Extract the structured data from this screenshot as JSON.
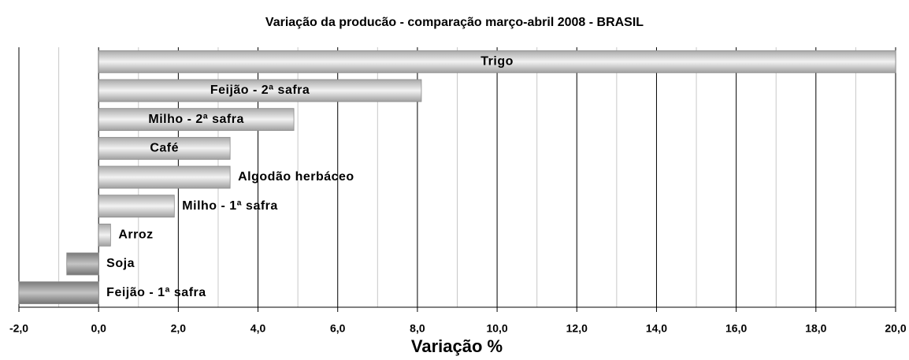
{
  "chart_data": {
    "type": "barh",
    "title": "Variação da producão - comparação março-abril 2008 - BRASIL",
    "xlabel": "Variação %",
    "categories": [
      "Trigo",
      "Feijão - 2ª safra",
      "Milho - 2ª safra",
      "Café",
      "Algodão herbáceo",
      "Milho - 1ª safra",
      "Arroz",
      "Soja",
      "Feijão - 1ª safra"
    ],
    "values": [
      20.0,
      8.1,
      4.9,
      3.3,
      3.3,
      1.9,
      0.3,
      -0.8,
      -2.0
    ],
    "color": "#c8c8c8",
    "xlim": [
      -2,
      20
    ],
    "xticks": [
      {
        "value": -2,
        "label": "-2,0"
      },
      {
        "value": 0,
        "label": "0,0"
      },
      {
        "value": 2,
        "label": "2,0"
      },
      {
        "value": 4,
        "label": "4,0"
      },
      {
        "value": 6,
        "label": "6,0"
      },
      {
        "value": 8,
        "label": "8,0"
      },
      {
        "value": 10,
        "label": "10,0"
      },
      {
        "value": 12,
        "label": "12,0"
      },
      {
        "value": 14,
        "label": "14,0"
      },
      {
        "value": 16,
        "label": "16,0"
      },
      {
        "value": 18,
        "label": "18,0"
      },
      {
        "value": 20,
        "label": "20,0"
      }
    ],
    "minor_xticks": [
      -1,
      1,
      3,
      5,
      7,
      9,
      11,
      13,
      15,
      17,
      19
    ],
    "grid": true
  }
}
